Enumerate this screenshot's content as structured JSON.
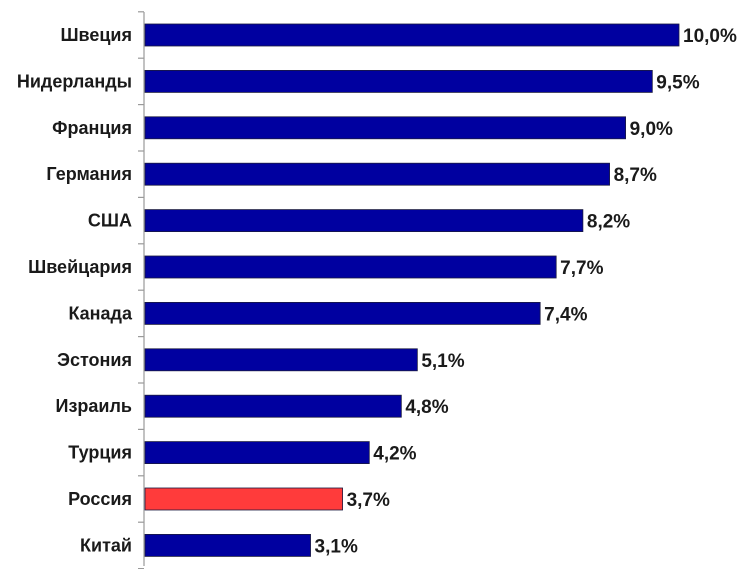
{
  "chart_data": {
    "type": "bar",
    "orientation": "horizontal",
    "categories": [
      "Швеция",
      "Нидерланды",
      "Франция",
      "Германия",
      "США",
      "Швейцария",
      "Канада",
      "Эстония",
      "Израиль",
      "Турция",
      "Россия",
      "Китай"
    ],
    "values": [
      10.0,
      9.5,
      9.0,
      8.7,
      8.2,
      7.7,
      7.4,
      5.1,
      4.8,
      4.2,
      3.7,
      3.1
    ],
    "value_labels": [
      "10,0%",
      "9,5%",
      "9,0%",
      "8,7%",
      "8,2%",
      "7,7%",
      "7,4%",
      "5,1%",
      "4,8%",
      "4,2%",
      "3,7%",
      "3,1%"
    ],
    "colors": [
      "#0000a0",
      "#0000a0",
      "#0000a0",
      "#0000a0",
      "#0000a0",
      "#0000a0",
      "#0000a0",
      "#0000a0",
      "#0000a0",
      "#0000a0",
      "#ff3b3b",
      "#0000a0"
    ],
    "xlim": [
      0,
      10
    ],
    "grid": false,
    "title": "",
    "xlabel": "",
    "ylabel": ""
  }
}
